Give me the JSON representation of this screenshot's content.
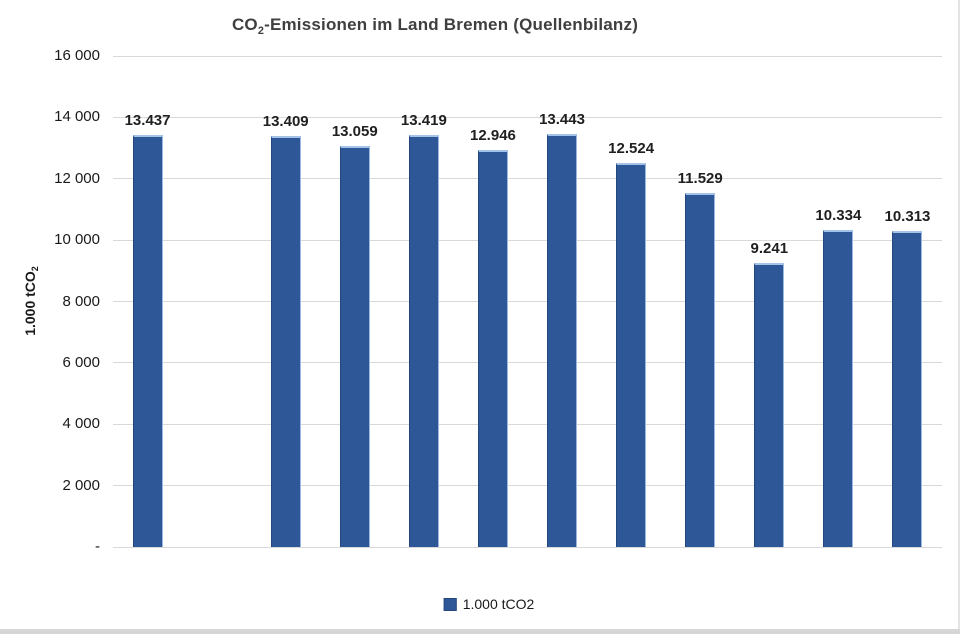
{
  "title": {
    "prefix": "CO",
    "sub": "2",
    "rest": "-Emissionen im Land Bremen (Quellenbilanz)"
  },
  "y_axis": {
    "title_prefix": "1.000 tCO",
    "title_sub": "2",
    "tick_labels": [
      "16 000",
      "14 000",
      "12 000",
      "10 000",
      "8 000",
      "6 000",
      "4 000",
      "2 000",
      "-"
    ],
    "tick_values": [
      16000,
      14000,
      12000,
      10000,
      8000,
      6000,
      4000,
      2000,
      0
    ]
  },
  "legend": {
    "label": "1.000 tCO2"
  },
  "chart_data": {
    "type": "bar",
    "title": "CO2-Emissionen im Land Bremen (Quellenbilanz)",
    "xlabel": "",
    "ylabel": "1.000 tCO2",
    "ylim": [
      0,
      16000
    ],
    "grid": true,
    "legend_position": "bottom",
    "legend_entries": [
      "1.000 tCO2"
    ],
    "categories": [
      "",
      "",
      "",
      "",
      "",
      "",
      "",
      "",
      "",
      "",
      "",
      ""
    ],
    "values": [
      13437,
      null,
      13409,
      13059,
      13419,
      12946,
      13443,
      12524,
      11529,
      9241,
      10334,
      10313
    ],
    "value_labels": [
      "13.437",
      null,
      "13.409",
      "13.059",
      "13.419",
      "12.946",
      "13.443",
      "12.524",
      "11.529",
      "9.241",
      "10.334",
      "10.313"
    ],
    "colors": {
      "bar_fill": "#2e5797",
      "bar_top_edge": "#a5c3e8",
      "bar_left_edge": "#24477e",
      "bar_right_edge": "#9bb8df",
      "gridline": "#d9d9d9",
      "title_text": "#3f3f3f",
      "label_text": "#1f1f1f"
    }
  }
}
